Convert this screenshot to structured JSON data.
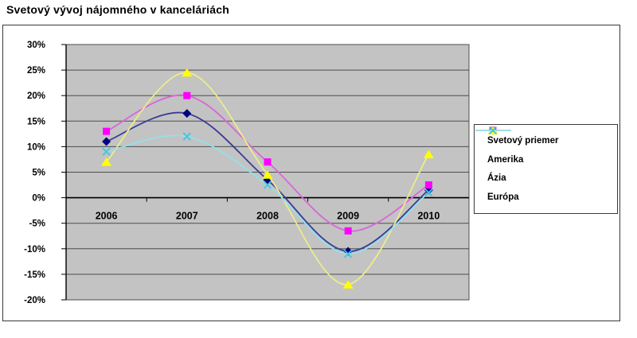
{
  "title": "Svetový vývoj nájomného v kanceláriách",
  "chart_data": {
    "type": "line",
    "smoothed": true,
    "title": "Svetový vývoj nájomného v kanceláriách",
    "xlabel": "",
    "ylabel": "",
    "categories": [
      "2006",
      "2007",
      "2008",
      "2009",
      "2010"
    ],
    "ylim": [
      -20,
      30
    ],
    "y_tick_step": 5,
    "y_ticks": [
      {
        "label": "30%",
        "value": 30
      },
      {
        "label": "25%",
        "value": 25
      },
      {
        "label": "20%",
        "value": 20
      },
      {
        "label": "15%",
        "value": 15
      },
      {
        "label": "10%",
        "value": 10
      },
      {
        "label": "5%",
        "value": 5
      },
      {
        "label": "0%",
        "value": 0
      },
      {
        "label": "-5%",
        "value": -5
      },
      {
        "label": "-10%",
        "value": -10
      },
      {
        "label": "-15%",
        "value": -15
      },
      {
        "label": "-20%",
        "value": -20
      }
    ],
    "series": [
      {
        "name": "Svetový priemer",
        "marker": "diamond",
        "marker_color": "#000080",
        "line_color": "#3c3c96",
        "values": [
          11,
          16.5,
          3.5,
          -10.5,
          1.5
        ]
      },
      {
        "name": "Amerika",
        "marker": "square",
        "marker_color": "#ff00ff",
        "line_color": "#d966d9",
        "values": [
          13,
          20,
          7,
          -6.5,
          2.5
        ]
      },
      {
        "name": "Ázia",
        "marker": "triangle",
        "marker_color": "#ffff00",
        "line_color": "#ecec8a",
        "values": [
          7,
          24.5,
          4.5,
          -17,
          8.5
        ]
      },
      {
        "name": "Európa",
        "marker": "x",
        "marker_color": "#3fc6e2",
        "line_color": "#94e0ea",
        "values": [
          9,
          12,
          2.5,
          -11,
          1
        ]
      }
    ],
    "legend_position": "right",
    "grid": true,
    "plot_bg": "#c3c3c3",
    "grid_color": "#4d4d4d",
    "axis_color": "#000000",
    "label_color": "#000000"
  }
}
